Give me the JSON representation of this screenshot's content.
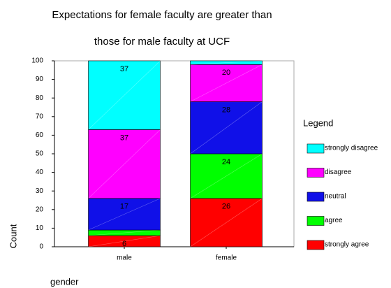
{
  "chart_data": {
    "type": "stacked_bar",
    "title": [
      "Expectations for female faculty are greater than",
      "those for male faculty at UCF"
    ],
    "y_label": "Count",
    "x_label": "gender",
    "legend_title": "Legend",
    "categories": [
      "male",
      "female"
    ],
    "series": [
      {
        "name": "strongly agree",
        "color": "#ff0000",
        "values": [
          6,
          26
        ],
        "value_labels": [
          "6",
          "26"
        ]
      },
      {
        "name": "agree",
        "color": "#00ff00",
        "values": [
          3,
          24
        ],
        "value_labels": [
          null,
          "24"
        ]
      },
      {
        "name": "neutral",
        "color": "#1010e8",
        "values": [
          17,
          28
        ],
        "value_labels": [
          "17",
          "28"
        ]
      },
      {
        "name": "disagree",
        "color": "#ff00ff",
        "values": [
          37,
          20
        ],
        "value_labels": [
          "37",
          "20"
        ]
      },
      {
        "name": "strongly disagree",
        "color": "#00ffff",
        "values": [
          37,
          2
        ],
        "value_labels": [
          "37",
          null
        ]
      }
    ],
    "ylim": [
      0,
      100
    ],
    "yticks": [
      0,
      10,
      20,
      30,
      40,
      50,
      60,
      70,
      80,
      90,
      100
    ],
    "legend": "right"
  }
}
